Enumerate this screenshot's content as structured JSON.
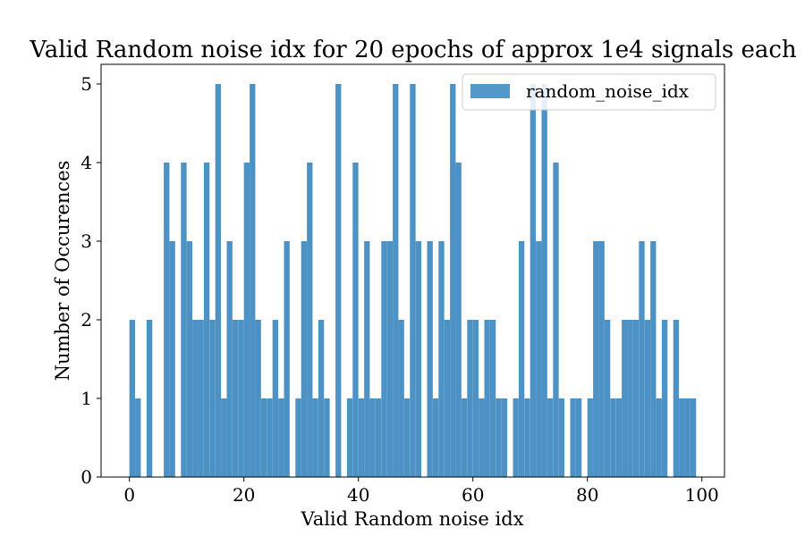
{
  "chart_data": {
    "type": "bar",
    "title": "Valid Random noise idx for 20 epochs of approx 1e4 signals each",
    "xlabel": "Valid Random noise idx",
    "ylabel": "Number of Occurences",
    "xlim": [
      -4.95,
      103.95
    ],
    "ylim": [
      0,
      5.25
    ],
    "xticks": [
      0,
      20,
      40,
      60,
      80,
      100
    ],
    "yticks": [
      0,
      1,
      2,
      3,
      4,
      5
    ],
    "bin_width": 0.99,
    "x": [
      0,
      1,
      2,
      3,
      4,
      5,
      6,
      7,
      8,
      9,
      10,
      11,
      12,
      13,
      14,
      15,
      16,
      17,
      18,
      19,
      20,
      21,
      22,
      23,
      24,
      25,
      26,
      27,
      28,
      29,
      30,
      31,
      32,
      33,
      34,
      35,
      36,
      37,
      38,
      39,
      40,
      41,
      42,
      43,
      44,
      45,
      46,
      47,
      48,
      49,
      50,
      51,
      52,
      53,
      54,
      55,
      56,
      57,
      58,
      59,
      60,
      61,
      62,
      63,
      64,
      65,
      66,
      67,
      68,
      69,
      70,
      71,
      72,
      73,
      74,
      75,
      76,
      77,
      78,
      79,
      80,
      81,
      82,
      83,
      84,
      85,
      86,
      87,
      88,
      89,
      90,
      91,
      92,
      93,
      94,
      95,
      96,
      97,
      98
    ],
    "series": [
      {
        "name": "random_noise_idx",
        "values": [
          2,
          1,
          0,
          2,
          0,
          0,
          4,
          3,
          0,
          4,
          3,
          2,
          2,
          4,
          2,
          5,
          1,
          3,
          2,
          2,
          4,
          5,
          2,
          1,
          1,
          2,
          1,
          3,
          0,
          1,
          3,
          4,
          1,
          2,
          1,
          0,
          5,
          0,
          1,
          4,
          1,
          3,
          1,
          1,
          3,
          3,
          5,
          2,
          1,
          5,
          3,
          0,
          3,
          1,
          3,
          2,
          5,
          4,
          1,
          2,
          2,
          1,
          2,
          2,
          1,
          1,
          0,
          1,
          3,
          1,
          5,
          3,
          5,
          1,
          4,
          1,
          0,
          1,
          1,
          0,
          1,
          3,
          3,
          2,
          1,
          1,
          2,
          2,
          2,
          3,
          2,
          3,
          1,
          2,
          0,
          2,
          1,
          1,
          1
        ]
      }
    ],
    "legend": {
      "position": "top-right",
      "entries": [
        "random_noise_idx"
      ]
    },
    "grid": false,
    "colors": {
      "bar": "#4C92C5",
      "axis": "#000000"
    }
  }
}
